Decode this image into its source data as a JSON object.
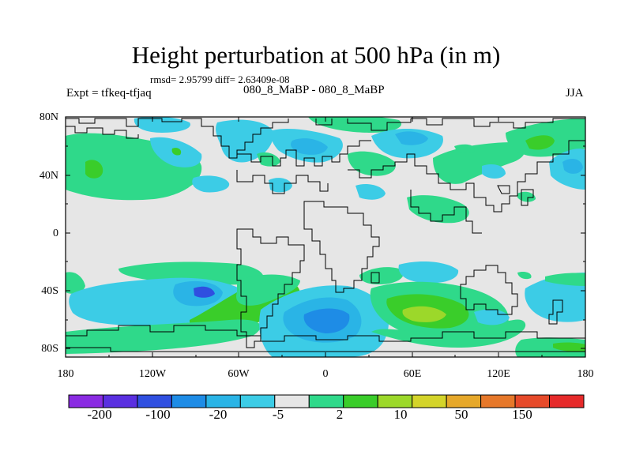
{
  "map": {
    "title": "Height perturbation at 500 hPa (in m)",
    "stats": "rmsd= 2.95799 diff= 2.63409e-08",
    "experiment": "Expt = tfkeq-tfjaq",
    "subtitle": "080_8_MaBP - 080_8_MaBP",
    "season": "JJA",
    "y_ticks": [
      "80N",
      "40N",
      "0",
      "40S",
      "80S"
    ],
    "x_ticks": [
      "180",
      "120W",
      "60W",
      "0",
      "60E",
      "120E",
      "180"
    ],
    "colors": {
      "background": "#e6e6e6",
      "coastline": "#000000"
    }
  },
  "colorbar": {
    "labels": [
      "-200",
      "-100",
      "-20",
      "-5",
      "2",
      "10",
      "50",
      "150"
    ],
    "colors": [
      "#8a2be2",
      "#5a2fe0",
      "#2f4fe0",
      "#1e8ce6",
      "#2ab4e6",
      "#3ccce6",
      "#e6e6e6",
      "#2fd98a",
      "#3acd2a",
      "#9cd82a",
      "#d4d42a",
      "#e6a82a",
      "#e6782a",
      "#e64a2a",
      "#e62a2a"
    ]
  }
}
